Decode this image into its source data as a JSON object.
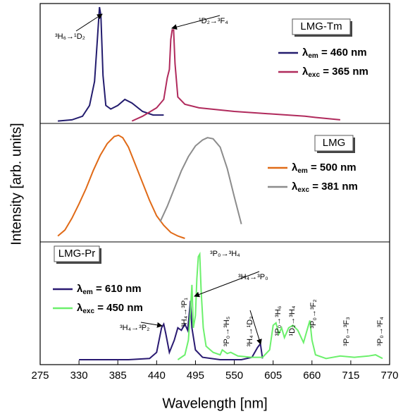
{
  "chart_data": [
    {
      "type": "line",
      "box_label": "LMG-Tm",
      "ylim": [
        0,
        1
      ],
      "series": [
        {
          "name": "λem = 460 nm",
          "color": "#231c6e",
          "x": [
            300,
            320,
            335,
            345,
            352,
            356,
            359,
            361,
            364,
            368,
            375,
            385,
            395,
            405,
            420,
            435,
            450
          ],
          "values": [
            0.02,
            0.03,
            0.06,
            0.15,
            0.35,
            0.7,
            0.97,
            0.9,
            0.4,
            0.15,
            0.12,
            0.15,
            0.2,
            0.17,
            0.1,
            0.07,
            0.07
          ]
        },
        {
          "name": "λexc = 365 nm",
          "color": "#b02a5c",
          "x": [
            405,
            420,
            440,
            450,
            455,
            458,
            460,
            462,
            464,
            466,
            470,
            480,
            500,
            550,
            600,
            650,
            665,
            700
          ],
          "values": [
            0.02,
            0.06,
            0.13,
            0.2,
            0.38,
            0.45,
            0.7,
            0.78,
            0.78,
            0.5,
            0.22,
            0.16,
            0.13,
            0.1,
            0.08,
            0.06,
            0.05,
            0.03
          ]
        }
      ],
      "annotations": [
        "³H₆→¹D₂",
        "¹D₂→³F₄"
      ]
    },
    {
      "type": "line",
      "box_label": "LMG",
      "ylim": [
        0,
        1
      ],
      "ylabel": "Intensity [arb. units]",
      "series": [
        {
          "name": "λem = 500 nm",
          "color": "#e06a17",
          "x": [
            300,
            310,
            320,
            330,
            340,
            350,
            360,
            370,
            380,
            386,
            392,
            400,
            410,
            420,
            430,
            440,
            450,
            460,
            470,
            480
          ],
          "values": [
            0.05,
            0.1,
            0.2,
            0.32,
            0.45,
            0.6,
            0.73,
            0.83,
            0.89,
            0.9,
            0.88,
            0.8,
            0.65,
            0.5,
            0.35,
            0.22,
            0.14,
            0.08,
            0.05,
            0.03
          ]
        },
        {
          "name": "λexc = 381 nm",
          "color": "#8c8c8c",
          "x": [
            445,
            455,
            465,
            475,
            485,
            495,
            505,
            512,
            520,
            530,
            540,
            550,
            560
          ],
          "values": [
            0.17,
            0.3,
            0.45,
            0.6,
            0.72,
            0.81,
            0.86,
            0.88,
            0.87,
            0.8,
            0.62,
            0.38,
            0.15
          ]
        }
      ],
      "annotations": []
    },
    {
      "type": "line",
      "box_label": "LMG-Pr",
      "ylim": [
        0,
        1
      ],
      "xlim": [
        275,
        770
      ],
      "xticks": [
        275,
        330,
        385,
        440,
        495,
        550,
        605,
        660,
        715,
        770
      ],
      "xlabel": "Wavelength [nm]",
      "series": [
        {
          "name": "λem = 610 nm",
          "color": "#2a1a72",
          "x": [
            330,
            400,
            430,
            440,
            447,
            450,
            453,
            458,
            465,
            470,
            475,
            480,
            484,
            488,
            490,
            495,
            505,
            530,
            560,
            575,
            583,
            587,
            590
          ],
          "values": [
            0.04,
            0.04,
            0.05,
            0.1,
            0.3,
            0.33,
            0.25,
            0.1,
            0.2,
            0.3,
            0.28,
            0.33,
            0.28,
            0.52,
            0.3,
            0.12,
            0.06,
            0.04,
            0.04,
            0.06,
            0.14,
            0.17,
            0.05
          ]
        },
        {
          "name": "λexc = 450 nm",
          "color": "#6cf06c",
          "x": [
            470,
            480,
            485,
            488,
            490,
            492,
            495,
            497,
            499,
            501,
            503,
            506,
            510,
            520,
            530,
            533,
            540,
            545,
            555,
            575,
            590,
            600,
            605,
            609,
            613,
            617,
            621,
            627,
            633,
            640,
            648,
            654,
            657,
            660,
            665,
            680,
            700,
            720,
            740,
            750,
            760
          ],
          "values": [
            0.04,
            0.08,
            0.2,
            0.45,
            0.65,
            0.3,
            0.4,
            0.7,
            0.88,
            0.9,
            0.6,
            0.3,
            0.15,
            0.1,
            0.08,
            0.12,
            0.09,
            0.1,
            0.07,
            0.06,
            0.06,
            0.12,
            0.32,
            0.34,
            0.25,
            0.3,
            0.22,
            0.3,
            0.32,
            0.28,
            0.18,
            0.3,
            0.36,
            0.2,
            0.08,
            0.05,
            0.07,
            0.06,
            0.07,
            0.08,
            0.05
          ]
        }
      ],
      "annotations": [
        "³P₀→³H₄",
        "³H₄→³P₀",
        "³H₄→³P₁",
        "³H₄→³P₂",
        "³P₀→³H₅",
        "³H₄→¹D₂",
        "³P₀→³H₆",
        "¹D₂→³H₄",
        "³P₀→³F₂",
        "³P₀→³F₃",
        "³P₀→³F₄"
      ]
    }
  ]
}
